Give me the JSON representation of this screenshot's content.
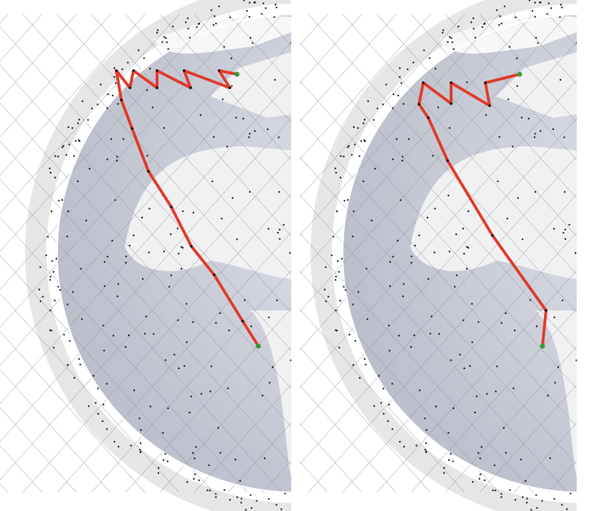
{
  "colors": {
    "ocean": "#c9ccd6",
    "land": "#f1f1f1",
    "grid": "#8d909c",
    "satellite": "#111111",
    "route": "#e03a2a",
    "endpoint": "#3a9a3a"
  },
  "panels": [
    {
      "name": "left-globe",
      "route_hops": 18
    },
    {
      "name": "right-globe",
      "route_hops": 12
    }
  ]
}
